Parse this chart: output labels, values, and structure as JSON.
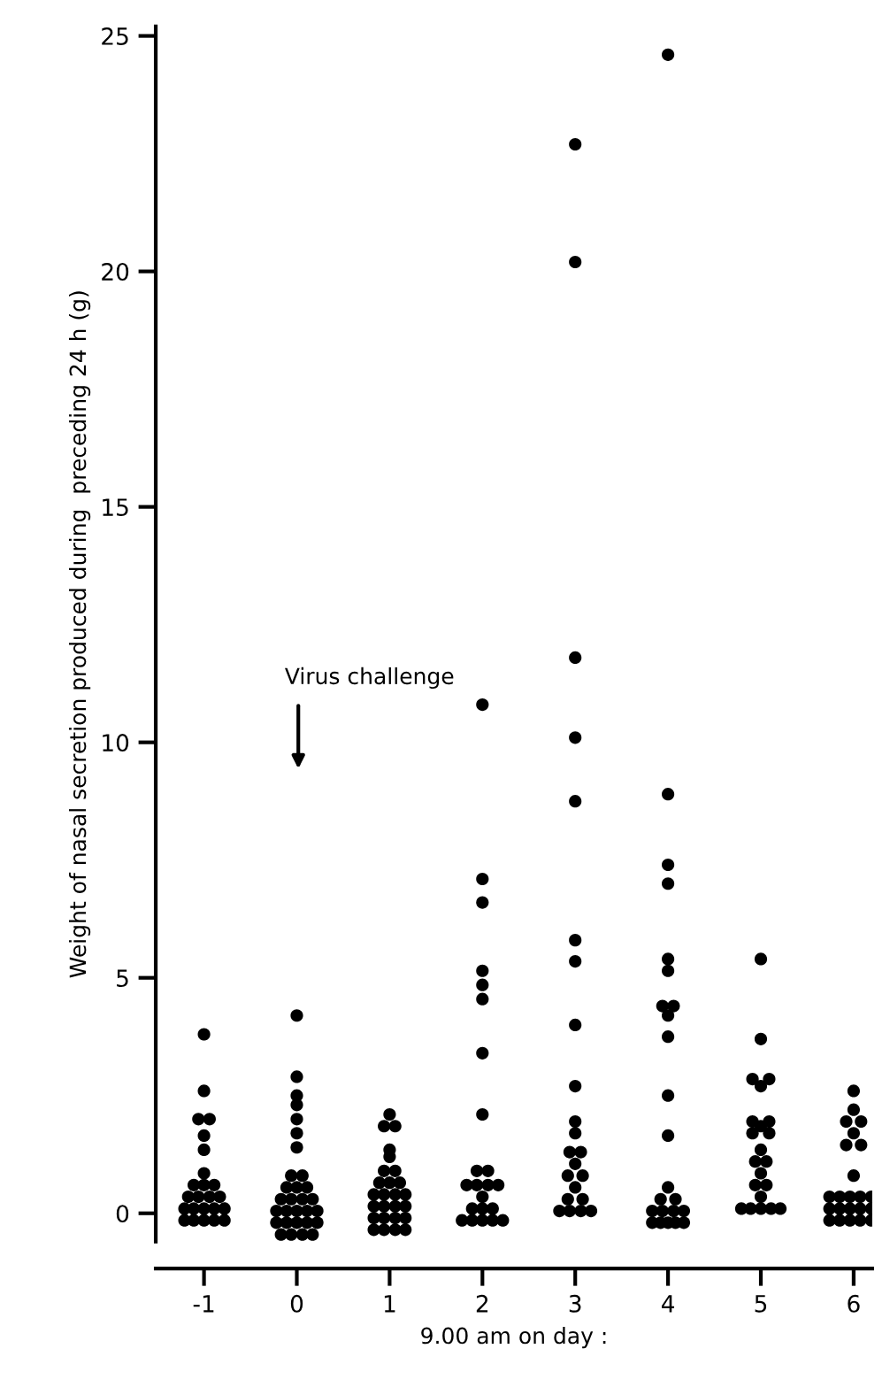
{
  "chart_data": {
    "type": "scatter",
    "xlabel": "9.00 am on day :",
    "ylabel": "Weight of nasal secretion produced during  preceding 24 h (g)",
    "xlim": [
      -1.52,
      6.2
    ],
    "xticks": [
      -1,
      0,
      1,
      2,
      3,
      4,
      5,
      6
    ],
    "ylim": [
      -0.6,
      25.2
    ],
    "yticks": [
      0,
      5,
      10,
      15,
      20,
      25
    ],
    "grid": false,
    "legend": false,
    "marker": "circle",
    "annotations": [
      "Virus challenge"
    ],
    "series": [
      {
        "color": "#000000",
        "x": [
          -1,
          -1,
          -1.06,
          -0.94,
          -1,
          -1,
          -1,
          -1.11,
          -1,
          -0.89,
          -1.17,
          -1.06,
          -0.94,
          -0.83,
          -1.21,
          -1.11,
          -1,
          -0.89,
          -0.78,
          -1.21,
          -1.11,
          -1,
          -0.89,
          -0.78
        ],
        "values": [
          3.8,
          2.6,
          2.0,
          2.0,
          1.65,
          1.35,
          0.85,
          0.6,
          0.6,
          0.6,
          0.35,
          0.35,
          0.35,
          0.35,
          0.1,
          0.1,
          0.1,
          0.1,
          0.1,
          -0.15,
          -0.15,
          -0.15,
          -0.15,
          -0.15
        ]
      },
      {
        "color": "#000000",
        "x": [
          0,
          0,
          0,
          0,
          0,
          0,
          0,
          -0.06,
          0.06,
          -0.11,
          0,
          0.11,
          -0.17,
          -0.06,
          0.06,
          0.17,
          -0.22,
          -0.11,
          0,
          0.11,
          0.22,
          -0.22,
          -0.11,
          0,
          0.11,
          0.22,
          -0.17,
          -0.06,
          0.06,
          0.17
        ],
        "values": [
          4.2,
          2.9,
          2.5,
          2.3,
          2.0,
          1.7,
          1.4,
          0.8,
          0.8,
          0.55,
          0.55,
          0.55,
          0.3,
          0.3,
          0.3,
          0.3,
          0.05,
          0.05,
          0.05,
          0.05,
          0.05,
          -0.2,
          -0.2,
          -0.2,
          -0.2,
          -0.2,
          -0.45,
          -0.45,
          -0.45,
          -0.45
        ]
      },
      {
        "color": "#000000",
        "x": [
          1,
          0.94,
          1.06,
          1,
          1,
          0.94,
          1.06,
          0.89,
          1,
          1.11,
          0.83,
          0.94,
          1.06,
          1.17,
          0.83,
          0.94,
          1.06,
          1.17,
          0.83,
          0.94,
          1.06,
          1.17,
          0.83,
          0.94,
          1.06,
          1.17
        ],
        "values": [
          2.1,
          1.85,
          1.85,
          1.35,
          1.2,
          0.9,
          0.9,
          0.65,
          0.65,
          0.65,
          0.4,
          0.4,
          0.4,
          0.4,
          0.15,
          0.15,
          0.15,
          0.15,
          -0.1,
          -0.1,
          -0.1,
          -0.1,
          -0.35,
          -0.35,
          -0.35,
          -0.35
        ]
      },
      {
        "color": "#000000",
        "x": [
          2,
          2,
          2,
          2,
          2,
          2,
          2,
          2,
          1.94,
          2.06,
          1.83,
          1.94,
          2.06,
          2.17,
          2,
          1.89,
          2,
          2.11,
          1.78,
          1.89,
          2,
          2.11,
          2.22
        ],
        "values": [
          10.8,
          7.1,
          6.6,
          5.15,
          4.85,
          4.55,
          3.4,
          2.1,
          0.9,
          0.9,
          0.6,
          0.6,
          0.6,
          0.6,
          0.35,
          0.1,
          0.1,
          0.1,
          -0.15,
          -0.15,
          -0.15,
          -0.15,
          -0.15
        ]
      },
      {
        "color": "#000000",
        "x": [
          3,
          3,
          3,
          3,
          3,
          3,
          3,
          3,
          3,
          3,
          3,
          2.94,
          3.06,
          3,
          2.92,
          3.08,
          3,
          2.92,
          3.08,
          2.83,
          2.94,
          3.06,
          3.17
        ],
        "values": [
          22.7,
          20.2,
          11.8,
          10.1,
          8.75,
          5.8,
          5.35,
          4.0,
          2.7,
          1.95,
          1.7,
          1.3,
          1.3,
          1.05,
          0.8,
          0.8,
          0.55,
          0.3,
          0.3,
          0.05,
          0.05,
          0.05,
          0.05
        ]
      },
      {
        "color": "#000000",
        "x": [
          4,
          4,
          4,
          4,
          4,
          4,
          3.94,
          4.06,
          4,
          4,
          4,
          4,
          4,
          3.92,
          4.08,
          3.83,
          3.94,
          4.06,
          4.17,
          3.83,
          3.92,
          4,
          4.08,
          4.17
        ],
        "values": [
          24.6,
          8.9,
          7.4,
          7.0,
          5.4,
          5.15,
          4.4,
          4.4,
          4.2,
          3.75,
          2.5,
          1.65,
          0.55,
          0.3,
          0.3,
          0.05,
          0.05,
          0.05,
          0.05,
          -0.2,
          -0.2,
          -0.2,
          -0.2,
          -0.2
        ]
      },
      {
        "color": "#000000",
        "x": [
          5,
          5,
          4.91,
          5.09,
          5,
          4.91,
          5.09,
          5,
          4.91,
          5.09,
          5,
          4.94,
          5.06,
          5,
          4.94,
          5.06,
          5,
          4.79,
          4.89,
          5,
          5.11,
          5.21
        ],
        "values": [
          5.4,
          3.7,
          2.85,
          2.85,
          2.7,
          1.95,
          1.95,
          1.85,
          1.7,
          1.7,
          1.35,
          1.1,
          1.1,
          0.85,
          0.6,
          0.6,
          0.35,
          0.1,
          0.1,
          0.1,
          0.1,
          0.1
        ]
      },
      {
        "color": "#000000",
        "x": [
          6,
          6,
          5.92,
          6.08,
          6,
          5.92,
          6.08,
          6,
          5.74,
          5.85,
          5.96,
          6.07,
          6.19,
          5.74,
          5.85,
          5.96,
          6.07,
          6.19,
          5.74,
          5.85,
          5.96,
          6.07,
          6.19
        ],
        "values": [
          2.6,
          2.2,
          1.95,
          1.95,
          1.7,
          1.45,
          1.45,
          0.8,
          0.35,
          0.35,
          0.35,
          0.35,
          0.35,
          0.1,
          0.1,
          0.1,
          0.1,
          0.1,
          -0.15,
          -0.15,
          -0.15,
          -0.15,
          -0.15
        ]
      }
    ]
  }
}
